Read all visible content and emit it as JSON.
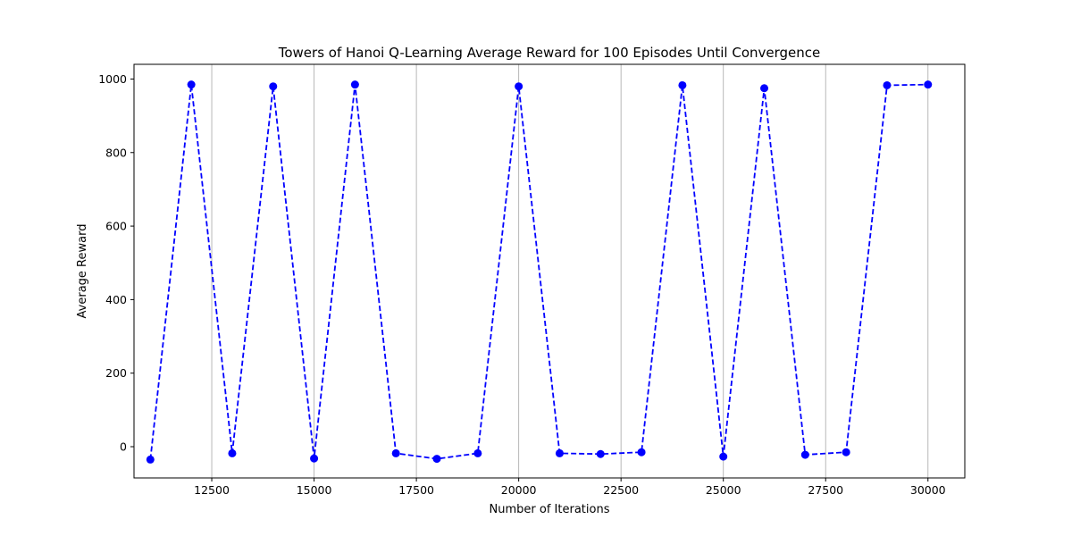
{
  "chart_data": {
    "type": "line",
    "title": "Towers of Hanoi Q-Learning Average Reward for 100 Episodes Until Convergence",
    "xlabel": "Number of Iterations",
    "ylabel": "Average Reward",
    "xlim": [
      10600,
      30900
    ],
    "ylim": [
      -85,
      1040
    ],
    "x_ticks": [
      12500,
      15000,
      17500,
      20000,
      22500,
      25000,
      27500,
      30000
    ],
    "y_ticks": [
      0,
      200,
      400,
      600,
      800,
      1000
    ],
    "grid": "x-axis vertical lines",
    "legend": "none",
    "series": [
      {
        "color": "#0000ff",
        "line_style": "dashed",
        "marker": "circle",
        "x": [
          11000,
          12000,
          13000,
          14000,
          15000,
          16000,
          17000,
          18000,
          19000,
          20000,
          21000,
          22000,
          23000,
          24000,
          25000,
          26000,
          27000,
          28000,
          29000,
          30000
        ],
        "y": [
          -35,
          985,
          -18,
          980,
          -32,
          985,
          -18,
          -33,
          -18,
          980,
          -18,
          -20,
          -15,
          983,
          -27,
          975,
          -22,
          -15,
          983,
          985
        ]
      }
    ]
  }
}
